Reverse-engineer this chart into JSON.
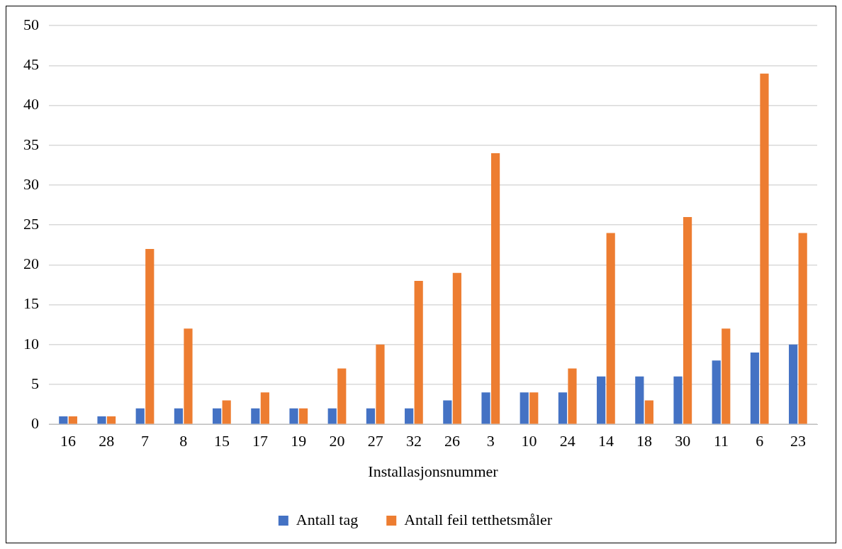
{
  "chart_data": {
    "type": "bar",
    "xlabel": "Installasjonsnummer",
    "categories": [
      "16",
      "28",
      "7",
      "8",
      "15",
      "17",
      "19",
      "20",
      "27",
      "32",
      "26",
      "3",
      "10",
      "24",
      "14",
      "18",
      "30",
      "11",
      "6",
      "23"
    ],
    "series": [
      {
        "name": "Antall tag",
        "color": "#4472c4",
        "values": [
          1,
          1,
          2,
          2,
          2,
          2,
          2,
          2,
          2,
          2,
          3,
          4,
          4,
          4,
          6,
          6,
          6,
          8,
          9,
          10
        ]
      },
      {
        "name": "Antall feil tetthetsmåler",
        "color": "#ed7d31",
        "values": [
          1,
          1,
          22,
          12,
          3,
          4,
          2,
          7,
          10,
          18,
          19,
          34,
          4,
          7,
          24,
          3,
          26,
          12,
          44,
          24
        ]
      }
    ],
    "ylim": [
      0,
      50
    ],
    "yticks": [
      0,
      5,
      10,
      15,
      20,
      25,
      30,
      35,
      40,
      45,
      50
    ],
    "grid": "y",
    "legend": "bottom"
  }
}
